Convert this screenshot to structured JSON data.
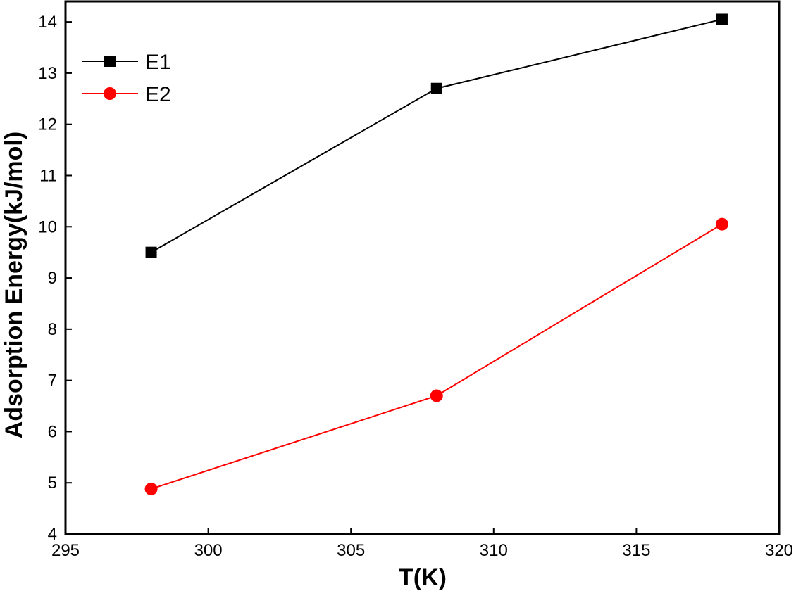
{
  "chart_data": {
    "type": "line",
    "xlabel": "T(K)",
    "ylabel": "Adsorption Energy(kJ/mol)",
    "xlim": [
      295,
      320
    ],
    "ylim": [
      4,
      14.4
    ],
    "xticks": [
      295,
      300,
      305,
      310,
      315,
      320
    ],
    "yticks": [
      4,
      5,
      6,
      7,
      8,
      9,
      10,
      11,
      12,
      13,
      14
    ],
    "grid": false,
    "legend_position": "top-left",
    "x": [
      298,
      308,
      318
    ],
    "series": [
      {
        "name": "E1",
        "values": [
          9.5,
          12.7,
          14.05
        ],
        "color": "#000000",
        "marker": "square"
      },
      {
        "name": "E2",
        "values": [
          4.88,
          6.7,
          10.05
        ],
        "color": "#ff0000",
        "marker": "circle"
      }
    ]
  }
}
